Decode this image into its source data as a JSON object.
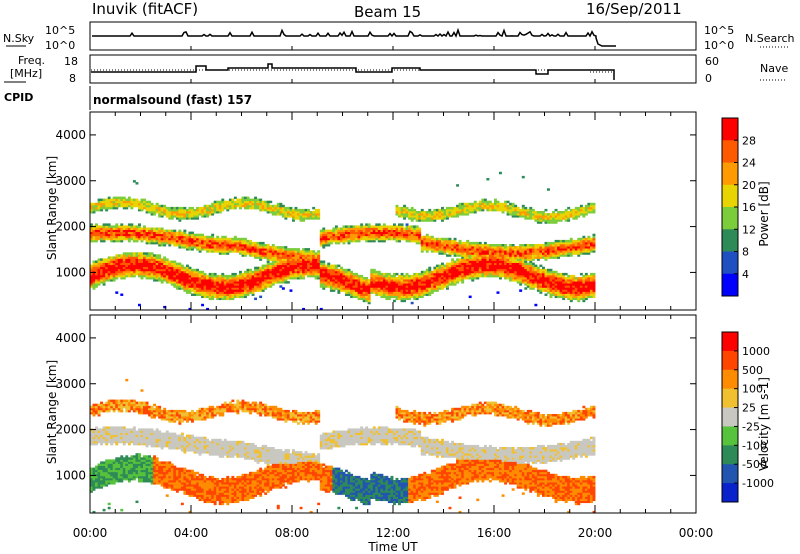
{
  "header": {
    "station": "Inuvik (fitACF)",
    "beam": "Beam 15",
    "date": "16/Sep/2011"
  },
  "noise_panel": {
    "left_label": "N.Sky",
    "left_ticks": [
      "10^5",
      "10^0"
    ],
    "right_ticks": [
      "10^5",
      "10^0"
    ],
    "right_label": "N.Search"
  },
  "freq_panel": {
    "left_label_1": "Freq.",
    "left_label_2": "[MHz]",
    "left_ticks": [
      "18",
      "8"
    ],
    "right_ticks": [
      "60",
      "0"
    ],
    "right_label": "Nave"
  },
  "cpid": {
    "label": "CPID",
    "program": "normalsound (fast) 157"
  },
  "chart_data": [
    {
      "type": "heatmap",
      "name": "power",
      "ylabel": "Slant Range [km]",
      "yticks": [
        "4000",
        "3000",
        "2000",
        "1000"
      ],
      "ylim": [
        180,
        4500
      ],
      "colorbar_label": "Power [dB]",
      "colorbar_ticks": [
        "28",
        "24",
        "20",
        "16",
        "12",
        "8",
        "4"
      ],
      "colors": [
        "#0000ff",
        "#1f4fc0",
        "#2e8b57",
        "#7ccd3c",
        "#e8d400",
        "#ff9a00",
        "#ff5a00",
        "#ff0000"
      ]
    },
    {
      "type": "heatmap",
      "name": "velocity",
      "ylabel": "Slant Range [km]",
      "yticks": [
        "4000",
        "3000",
        "2000",
        "1000"
      ],
      "ylim": [
        180,
        4500
      ],
      "colorbar_label": "Velocity [m s-1]",
      "colorbar_ticks": [
        "1000",
        "500",
        "100",
        "25",
        "-25",
        "-100",
        "-500",
        "-1000"
      ],
      "colors": [
        "#0a22cc",
        "#2255b0",
        "#2e8b57",
        "#57c23c",
        "#c8c8c0",
        "#f0c030",
        "#ff8c00",
        "#ff4500",
        "#ff0000"
      ]
    }
  ],
  "time_axis": {
    "ticks": [
      "00:00",
      "04:00",
      "08:00",
      "12:00",
      "16:00",
      "20:00",
      "00:00"
    ],
    "xlabel": "Time UT",
    "hours": [
      0,
      24
    ],
    "data_end_hour": 20
  }
}
